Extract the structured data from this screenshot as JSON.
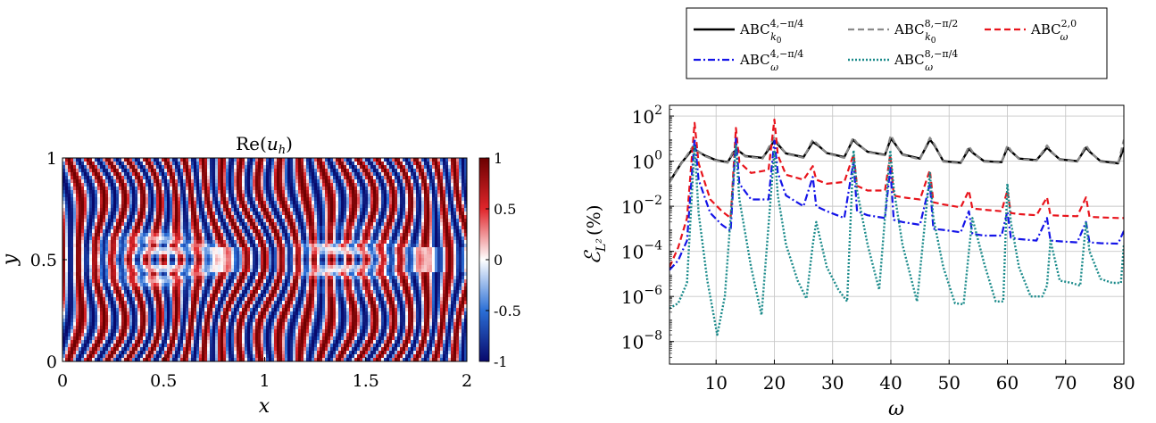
{
  "chart_data": [
    {
      "type": "heatmap",
      "title": "Re(u_h)",
      "title_parts": {
        "main": "Re(",
        "var": "u",
        "sub": "h",
        "close": ")"
      },
      "xlabel": "x",
      "ylabel": "y",
      "xlim": [
        0,
        2
      ],
      "ylim": [
        0,
        1
      ],
      "x_ticks": [
        "0",
        "0.5",
        "1",
        "1.5",
        "2"
      ],
      "y_ticks": [
        "0",
        "0.5",
        "1"
      ],
      "colorbar": {
        "range": [
          -1,
          1
        ],
        "ticks": [
          "1",
          "0.5",
          "0",
          "-0.5",
          "-1"
        ],
        "colormap": [
          "#08086b",
          "#2b6fd6",
          "#ffffff",
          "#e0262b",
          "#6b0000"
        ]
      },
      "field_description": "wave pattern with scatterer clusters centered near (0.5, 0.5) and (1.4, 0.5)"
    },
    {
      "type": "line",
      "xlabel": "ω",
      "ylabel": "ℰ_{L²} (%)",
      "ylabel_parts": {
        "sym": "ℰ",
        "sub": "L²",
        "unit": "(%)"
      },
      "x_ticks": [
        "10",
        "20",
        "30",
        "40",
        "50",
        "60",
        "70",
        "80"
      ],
      "y_ticks": [
        {
          "base": "10",
          "exp": "2"
        },
        {
          "base": "10",
          "exp": "0"
        },
        {
          "base": "10",
          "exp": "−2"
        },
        {
          "base": "10",
          "exp": "−4"
        },
        {
          "base": "10",
          "exp": "−6"
        },
        {
          "base": "10",
          "exp": "−8"
        }
      ],
      "xlim": [
        2,
        80
      ],
      "ylim": [
        1e-09,
        300
      ],
      "yscale": "log",
      "grid": true,
      "legend_position": "top",
      "resonances": [
        6.3,
        13.4,
        20.0,
        26.6,
        33.6,
        39.9,
        46.7,
        53.4,
        60.0,
        66.8,
        73.5,
        80.0
      ],
      "series": [
        {
          "name": "ABC_{k0}^{4,−π/4}",
          "legend": {
            "base": "ABC",
            "sup": "4,−π/4",
            "sub": "k",
            "subsub": "0"
          },
          "color": "#000000",
          "dash": "solid",
          "x": [
            2,
            4,
            6,
            6.6,
            8,
            10,
            12,
            13,
            13.6,
            15,
            18,
            20,
            20.5,
            22,
            25,
            26.6,
            27.5,
            29,
            32,
            33.5,
            34.2,
            36,
            39,
            40,
            40.7,
            42,
            45,
            46.7,
            47.5,
            49,
            52,
            53.4,
            54.2,
            56,
            59,
            60,
            60.8,
            62,
            65,
            66.8,
            67.6,
            69,
            72,
            73.5,
            74.3,
            76,
            79,
            80
          ],
          "y": [
            0.12,
            0.8,
            3.5,
            3.0,
            1.8,
            1.1,
            0.9,
            2.5,
            3.3,
            1.7,
            1.4,
            8,
            6,
            2.2,
            1.5,
            7,
            5,
            2.3,
            1.5,
            9,
            6,
            2.6,
            1.9,
            10,
            6,
            2.0,
            1.3,
            9,
            5,
            1.0,
            0.85,
            3.5,
            2.2,
            1.0,
            0.9,
            4,
            2.5,
            1.3,
            1.1,
            4,
            2.5,
            1.2,
            1.0,
            4,
            2.4,
            1.0,
            0.8,
            4
          ]
        },
        {
          "name": "ABC_{k0}^{8,−π/2}",
          "legend": {
            "base": "ABC",
            "sup": "8,−π/2",
            "sub": "k",
            "subsub": "0"
          },
          "color": "#8a8a8a",
          "dash": "dashed",
          "x": [
            2,
            4,
            6,
            6.6,
            8,
            10,
            12,
            13,
            13.6,
            15,
            18,
            20,
            20.5,
            22,
            25,
            26.6,
            27.5,
            29,
            32,
            33.5,
            34.2,
            36,
            39,
            40,
            40.7,
            42,
            45,
            46.7,
            47.5,
            49,
            52,
            53.4,
            54.2,
            56,
            59,
            60,
            60.8,
            62,
            65,
            66.8,
            67.6,
            69,
            72,
            73.5,
            74.3,
            76,
            79,
            80
          ],
          "y": [
            0.11,
            0.75,
            4.5,
            3.2,
            1.7,
            1.05,
            0.85,
            3.0,
            3.5,
            1.6,
            1.3,
            12,
            7,
            2.1,
            1.4,
            9,
            5.5,
            2.2,
            1.4,
            11,
            6.5,
            2.5,
            1.8,
            14,
            6.5,
            1.9,
            1.2,
            11,
            5.5,
            0.95,
            0.8,
            4.5,
            2.3,
            0.95,
            0.85,
            5,
            2.6,
            1.25,
            1.05,
            5,
            2.6,
            1.15,
            0.95,
            5,
            2.5,
            0.95,
            0.75,
            9
          ]
        },
        {
          "name": "ABC_{ω}^{2,0}",
          "legend": {
            "base": "ABC",
            "sup": "2,0",
            "sub": "ω",
            "subsub": ""
          },
          "color": "#e8141c",
          "dash": "dashed",
          "x": [
            2,
            3.5,
            5,
            6.3,
            7,
            9,
            11,
            12.5,
            13.4,
            14,
            16,
            19,
            20,
            20.6,
            22,
            25,
            26.6,
            27.2,
            29,
            32,
            33.6,
            34.2,
            36,
            39,
            39.9,
            40.5,
            42,
            45,
            46.7,
            47.3,
            49,
            52,
            53.4,
            54,
            56,
            59,
            60,
            60.6,
            62,
            65,
            66.8,
            67.4,
            69,
            72,
            73.5,
            74.1,
            76,
            79,
            80
          ],
          "y": [
            2e-05,
            0.00015,
            0.003,
            50,
            0.8,
            0.02,
            0.006,
            0.003,
            30,
            0.9,
            0.3,
            0.4,
            70,
            1.8,
            0.25,
            0.15,
            0.6,
            0.15,
            0.1,
            0.12,
            2,
            0.08,
            0.05,
            0.05,
            2,
            0.03,
            0.025,
            0.02,
            0.4,
            0.015,
            0.012,
            0.009,
            0.05,
            0.008,
            0.007,
            0.006,
            0.05,
            0.005,
            0.0045,
            0.004,
            0.025,
            0.004,
            0.0038,
            0.0036,
            0.025,
            0.0034,
            0.0032,
            0.003,
            0.003
          ]
        },
        {
          "name": "ABC_{ω}^{4,−π/4}",
          "legend": {
            "base": "ABC",
            "sup": "4,−π/4",
            "sub": "ω",
            "subsub": ""
          },
          "color": "#1414e8",
          "dash": "dashdot",
          "x": [
            2,
            3.5,
            5,
            6.3,
            7,
            9,
            11,
            12.5,
            13.4,
            14,
            16,
            19,
            20,
            20.6,
            22,
            25,
            26.6,
            27.2,
            29,
            32,
            33.6,
            34.2,
            36,
            39,
            39.9,
            40.5,
            42,
            45,
            46.7,
            47.3,
            49,
            52,
            53.4,
            54,
            56,
            59,
            60,
            60.6,
            62,
            65,
            66.8,
            67.4,
            69,
            72,
            73.5,
            74.1,
            76,
            79,
            80
          ],
          "y": [
            1.5e-05,
            4e-05,
            0.0003,
            10,
            0.15,
            0.005,
            0.0015,
            0.0008,
            10,
            0.1,
            0.02,
            0.02,
            8,
            0.3,
            0.03,
            0.01,
            0.2,
            0.01,
            0.006,
            0.003,
            1,
            0.006,
            0.004,
            0.003,
            0.5,
            0.0025,
            0.002,
            0.0015,
            0.1,
            0.001,
            0.0009,
            0.0007,
            0.006,
            0.0006,
            0.0005,
            0.0005,
            0.006,
            0.0004,
            0.00035,
            0.0003,
            0.003,
            0.0003,
            0.00028,
            0.00025,
            0.002,
            0.00025,
            0.00023,
            0.00022,
            0.0008
          ]
        },
        {
          "name": "ABC_{ω}^{8,−π/4}",
          "legend": {
            "base": "ABC",
            "sup": "8,−π/4",
            "sub": "ω",
            "subsub": ""
          },
          "color": "#1a8a8a",
          "dash": "dotted",
          "x": [
            2,
            3.5,
            5,
            6.3,
            7,
            8.5,
            10.2,
            11.5,
            13.4,
            14,
            16,
            17.8,
            20,
            20.6,
            22,
            24,
            25.5,
            26.6,
            27.2,
            29,
            31,
            32.5,
            33.6,
            34.2,
            36,
            38,
            39.9,
            40.5,
            42,
            44.5,
            46.7,
            47.3,
            49,
            51,
            52.5,
            53.4,
            54,
            56,
            58,
            59.3,
            60,
            60.6,
            62,
            64,
            66,
            66.8,
            67.4,
            69,
            71,
            72.5,
            73.5,
            74.1,
            76,
            78,
            79.5,
            80
          ],
          "y": [
            3e-07,
            5e-07,
            4e-06,
            5,
            0.005,
            5e-06,
            2e-08,
            1e-06,
            5,
            0.02,
            2e-05,
            1.5e-07,
            3,
            0.03,
            0.0002,
            5e-06,
            8e-07,
            0.0002,
            0.002,
            2e-05,
            2e-06,
            6e-07,
            3,
            0.05,
            0.0002,
            2e-06,
            3,
            0.06,
            0.0002,
            6e-07,
            0.3,
            0.003,
            2e-05,
            5e-07,
            4.5e-07,
            0.0001,
            0.003,
            3e-05,
            6e-07,
            6e-07,
            0.1,
            0.002,
            2e-05,
            1e-06,
            1e-06,
            3e-06,
            0.0003,
            5e-06,
            4e-06,
            3e-06,
            0.002,
            0.0001,
            6e-06,
            4e-06,
            4e-06,
            0.0002
          ]
        }
      ]
    }
  ]
}
